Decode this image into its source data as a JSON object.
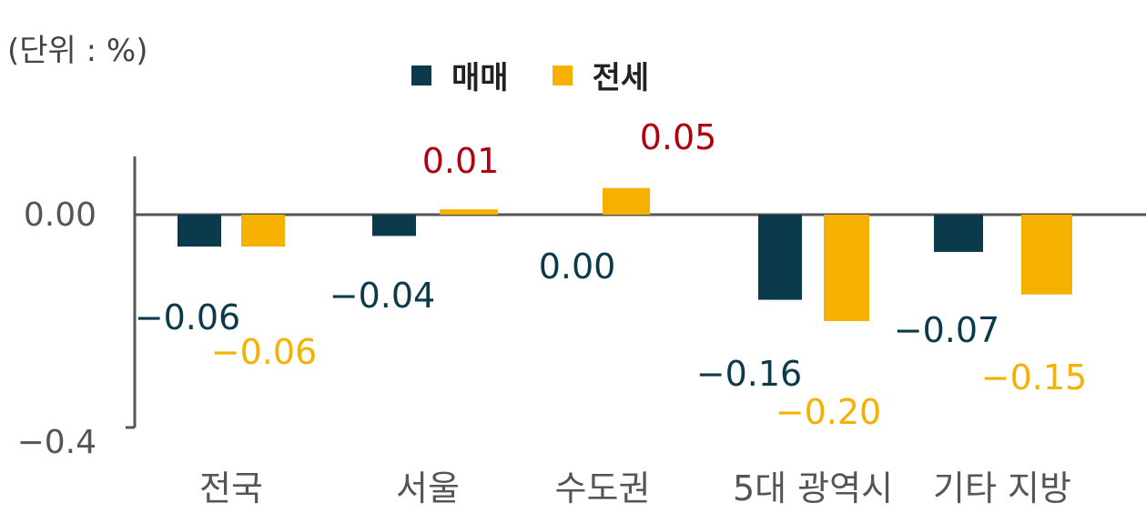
{
  "unit_label": "(단위 : %)",
  "chart_data": {
    "type": "bar",
    "categories": [
      "전국",
      "서울",
      "수도권",
      "5대 광역시",
      "기타 지방"
    ],
    "series": [
      {
        "name": "매매",
        "color": "#0b3a4d",
        "values": [
          -0.06,
          -0.04,
          0.0,
          -0.16,
          -0.07
        ],
        "labels": [
          "−0.06",
          "−0.04",
          "0.00",
          "−0.16",
          "−0.07"
        ]
      },
      {
        "name": "전세",
        "color": "#f5b000",
        "values": [
          -0.06,
          0.01,
          0.05,
          -0.2,
          -0.15
        ],
        "labels": [
          "−0.06",
          "0.01",
          "0.05",
          "−0.20",
          "−0.15"
        ]
      }
    ],
    "y_ticks": [
      "0.00",
      "−0.4"
    ],
    "ylim": [
      -0.4,
      0.1
    ],
    "legend_position": "top",
    "grid": false,
    "label_colors": {
      "positive": "#b00010",
      "axis": "#555555"
    }
  }
}
